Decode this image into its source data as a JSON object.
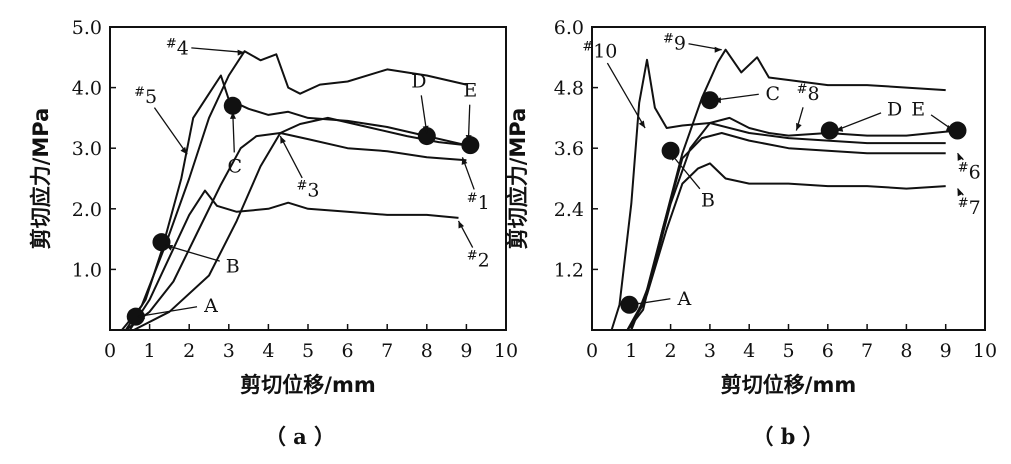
{
  "chart_data": [
    {
      "type": "line",
      "panel_label": "（ a ）",
      "xlabel": "剪切位移/mm",
      "ylabel": "剪切应力/MPa",
      "xlim": [
        0,
        10
      ],
      "ylim": [
        0,
        5.0
      ],
      "x_ticks": [
        "0",
        "1",
        "2",
        "3",
        "4",
        "5",
        "6",
        "7",
        "8",
        "9",
        "10"
      ],
      "y_ticks": [
        "1.0",
        "2.0",
        "3.0",
        "4.0",
        "5.0"
      ],
      "y_tick_values": [
        1.0,
        2.0,
        3.0,
        4.0,
        5.0
      ],
      "series": [
        {
          "name": "#1",
          "points": [
            [
              0.4,
              0
            ],
            [
              1.0,
              0.3
            ],
            [
              1.6,
              0.8
            ],
            [
              2.2,
              1.6
            ],
            [
              2.8,
              2.4
            ],
            [
              3.3,
              3.0
            ],
            [
              3.7,
              3.2
            ],
            [
              4.3,
              3.25
            ],
            [
              5.0,
              3.15
            ],
            [
              6.0,
              3.0
            ],
            [
              7.0,
              2.95
            ],
            [
              8.0,
              2.85
            ],
            [
              9.0,
              2.8
            ]
          ]
        },
        {
          "name": "#2",
          "points": [
            [
              0.5,
              0
            ],
            [
              1.0,
              0.5
            ],
            [
              1.5,
              1.2
            ],
            [
              2.0,
              1.9
            ],
            [
              2.4,
              2.3
            ],
            [
              2.7,
              2.05
            ],
            [
              3.2,
              1.95
            ],
            [
              4.0,
              2.0
            ],
            [
              4.5,
              2.1
            ],
            [
              5.0,
              2.0
            ],
            [
              6.0,
              1.95
            ],
            [
              7.0,
              1.9
            ],
            [
              8.0,
              1.9
            ],
            [
              8.8,
              1.85
            ]
          ]
        },
        {
          "name": "#3",
          "points": [
            [
              0.6,
              0
            ],
            [
              1.5,
              0.3
            ],
            [
              2.5,
              0.9
            ],
            [
              3.2,
              1.8
            ],
            [
              3.8,
              2.7
            ],
            [
              4.3,
              3.25
            ],
            [
              4.8,
              3.4
            ],
            [
              5.5,
              3.5
            ],
            [
              6.5,
              3.35
            ],
            [
              7.5,
              3.2
            ],
            [
              8.3,
              3.1
            ],
            [
              9.0,
              3.05
            ]
          ]
        },
        {
          "name": "#4",
          "points": [
            [
              0.3,
              0
            ],
            [
              0.8,
              0.4
            ],
            [
              1.4,
              1.4
            ],
            [
              2.0,
              2.5
            ],
            [
              2.5,
              3.5
            ],
            [
              3.0,
              4.2
            ],
            [
              3.4,
              4.6
            ],
            [
              3.8,
              4.45
            ],
            [
              4.2,
              4.55
            ],
            [
              4.5,
              4.0
            ],
            [
              4.8,
              3.9
            ],
            [
              5.3,
              4.05
            ],
            [
              6.0,
              4.1
            ],
            [
              7.0,
              4.3
            ],
            [
              8.0,
              4.2
            ],
            [
              9.0,
              4.05
            ]
          ]
        },
        {
          "name": "#5",
          "points": [
            [
              0.4,
              0
            ],
            [
              0.9,
              0.5
            ],
            [
              1.3,
              1.3
            ],
            [
              1.8,
              2.5
            ],
            [
              2.1,
              3.5
            ],
            [
              2.5,
              3.9
            ],
            [
              2.8,
              4.2
            ],
            [
              3.0,
              3.8
            ],
            [
              3.5,
              3.65
            ],
            [
              4.0,
              3.55
            ],
            [
              4.5,
              3.6
            ],
            [
              5.0,
              3.5
            ],
            [
              6.0,
              3.45
            ],
            [
              7.0,
              3.35
            ],
            [
              8.0,
              3.2
            ],
            [
              9.0,
              3.05
            ]
          ]
        }
      ],
      "points_marked": [
        {
          "label": "A",
          "x": 0.65,
          "y": 0.22
        },
        {
          "label": "B",
          "x": 1.3,
          "y": 1.45
        },
        {
          "label": "C",
          "x": 3.1,
          "y": 3.7
        },
        {
          "label": "D",
          "x": 8.0,
          "y": 3.2
        },
        {
          "label": "E",
          "x": 9.1,
          "y": 3.05
        }
      ],
      "series_labels": [
        {
          "label": "#4",
          "x": 1.7,
          "y": 4.55
        },
        {
          "label": "#5",
          "x": 0.9,
          "y": 3.75
        },
        {
          "label": "C",
          "x": 3.15,
          "y": 2.6
        },
        {
          "label": "#3",
          "x": 5.0,
          "y": 2.2
        },
        {
          "label": "#1",
          "x": 9.3,
          "y": 2.0
        },
        {
          "label": "#2",
          "x": 9.3,
          "y": 1.05
        },
        {
          "label": "A",
          "x": 2.55,
          "y": 0.3
        },
        {
          "label": "B",
          "x": 3.1,
          "y": 0.95
        },
        {
          "label": "D",
          "x": 7.8,
          "y": 4.0
        },
        {
          "label": "E",
          "x": 9.1,
          "y": 3.85
        }
      ]
    },
    {
      "type": "line",
      "panel_label": "（ b ）",
      "xlabel": "剪切位移/mm",
      "ylabel": "剪切应力/MPa",
      "xlim": [
        0,
        10
      ],
      "ylim": [
        0,
        6.0
      ],
      "x_ticks": [
        "0",
        "1",
        "2",
        "3",
        "4",
        "5",
        "6",
        "7",
        "8",
        "9",
        "10"
      ],
      "y_ticks": [
        "1.2",
        "2.4",
        "3.6",
        "4.8",
        "6.0"
      ],
      "y_tick_values": [
        1.2,
        2.4,
        3.6,
        4.8,
        6.0
      ],
      "series": [
        {
          "name": "#6",
          "points": [
            [
              0.9,
              0
            ],
            [
              1.3,
              0.4
            ],
            [
              1.8,
              2.0
            ],
            [
              2.3,
              3.4
            ],
            [
              2.8,
              3.8
            ],
            [
              3.3,
              3.9
            ],
            [
              4.0,
              3.75
            ],
            [
              5.0,
              3.6
            ],
            [
              6.0,
              3.55
            ],
            [
              7.0,
              3.5
            ],
            [
              8.0,
              3.5
            ],
            [
              9.0,
              3.5
            ]
          ]
        },
        {
          "name": "#7",
          "points": [
            [
              0.9,
              0
            ],
            [
              1.4,
              0.7
            ],
            [
              1.9,
              2.0
            ],
            [
              2.3,
              2.9
            ],
            [
              2.7,
              3.2
            ],
            [
              3.0,
              3.3
            ],
            [
              3.4,
              3.0
            ],
            [
              4.0,
              2.9
            ],
            [
              5.0,
              2.9
            ],
            [
              6.0,
              2.85
            ],
            [
              7.0,
              2.85
            ],
            [
              8.0,
              2.8
            ],
            [
              9.0,
              2.85
            ]
          ]
        },
        {
          "name": "#8",
          "points": [
            [
              1.0,
              0
            ],
            [
              1.5,
              1.0
            ],
            [
              2.0,
              2.5
            ],
            [
              2.5,
              3.6
            ],
            [
              3.0,
              4.1
            ],
            [
              3.5,
              4.2
            ],
            [
              4.0,
              4.0
            ],
            [
              4.5,
              3.9
            ],
            [
              5.0,
              3.85
            ],
            [
              6.0,
              3.9
            ],
            [
              7.0,
              3.85
            ],
            [
              8.0,
              3.85
            ],
            [
              9.3,
              3.95
            ]
          ]
        },
        {
          "name": "#9",
          "points": [
            [
              0.9,
              0
            ],
            [
              1.3,
              0.5
            ],
            [
              1.8,
              2.0
            ],
            [
              2.3,
              3.5
            ],
            [
              2.8,
              4.6
            ],
            [
              3.2,
              5.3
            ],
            [
              3.4,
              5.55
            ],
            [
              3.8,
              5.1
            ],
            [
              4.2,
              5.4
            ],
            [
              4.5,
              5.0
            ],
            [
              5.0,
              4.95
            ],
            [
              6.0,
              4.85
            ],
            [
              7.0,
              4.85
            ],
            [
              8.0,
              4.8
            ],
            [
              9.0,
              4.75
            ]
          ]
        },
        {
          "name": "#10",
          "points": [
            [
              0.5,
              0
            ],
            [
              0.7,
              0.5
            ],
            [
              1.0,
              2.5
            ],
            [
              1.2,
              4.5
            ],
            [
              1.4,
              5.35
            ],
            [
              1.6,
              4.4
            ],
            [
              1.9,
              4.0
            ],
            [
              2.3,
              4.05
            ],
            [
              3.0,
              4.1
            ],
            [
              4.0,
              3.9
            ],
            [
              5.0,
              3.8
            ],
            [
              6.0,
              3.75
            ],
            [
              7.0,
              3.7
            ],
            [
              8.0,
              3.7
            ],
            [
              9.0,
              3.7
            ]
          ]
        }
      ],
      "points_marked": [
        {
          "label": "A",
          "x": 0.95,
          "y": 0.5
        },
        {
          "label": "B",
          "x": 2.0,
          "y": 3.55
        },
        {
          "label": "C",
          "x": 3.0,
          "y": 4.55
        },
        {
          "label": "D",
          "x": 6.05,
          "y": 3.95
        },
        {
          "label": "E",
          "x": 9.3,
          "y": 3.95
        }
      ],
      "series_labels": [
        {
          "label": "#10",
          "x": 0.2,
          "y": 5.4
        },
        {
          "label": "#9",
          "x": 2.1,
          "y": 5.55
        },
        {
          "label": "C",
          "x": 4.6,
          "y": 4.55
        },
        {
          "label": "#8",
          "x": 5.5,
          "y": 4.55
        },
        {
          "label": "D",
          "x": 7.7,
          "y": 4.25
        },
        {
          "label": "E",
          "x": 8.3,
          "y": 4.25
        },
        {
          "label": "#6",
          "x": 9.6,
          "y": 3.0
        },
        {
          "label": "#7",
          "x": 9.6,
          "y": 2.3
        },
        {
          "label": "B",
          "x": 2.95,
          "y": 2.45
        },
        {
          "label": "A",
          "x": 2.35,
          "y": 0.5
        }
      ]
    }
  ]
}
